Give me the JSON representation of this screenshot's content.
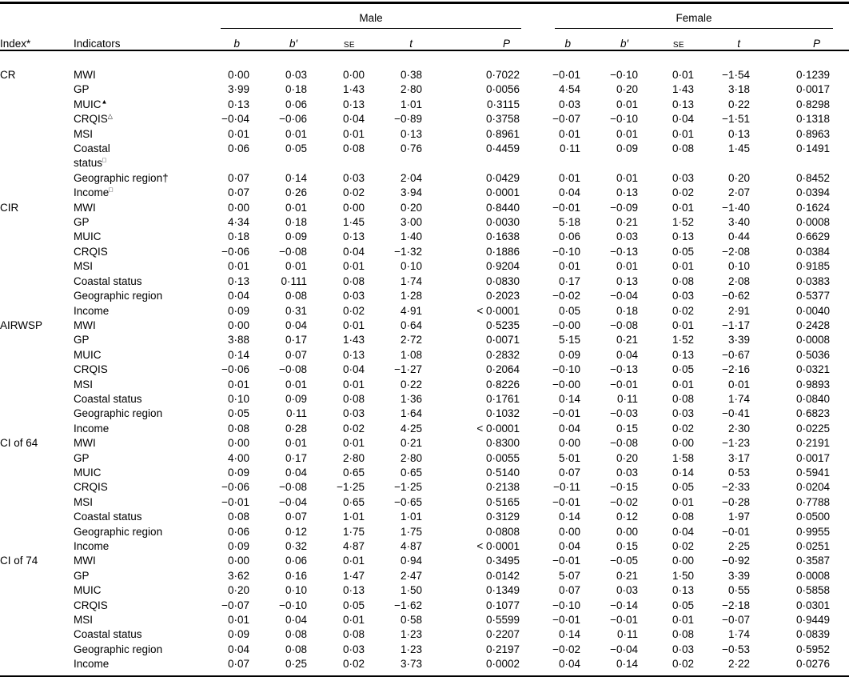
{
  "table": {
    "headers": {
      "index": "Index*",
      "indicators": "Indicators",
      "male": "Male",
      "female": "Female",
      "stats": [
        "b",
        "b′",
        "SE",
        "t",
        "P"
      ]
    },
    "groups": [
      {
        "index": "CR",
        "rows": [
          {
            "indicator": "MWI",
            "sup": "",
            "m": [
              "0·00",
              "0·03",
              "0·00",
              "0·38",
              "0·7022"
            ],
            "f": [
              "−0·01",
              "−0·10",
              "0·01",
              "−1·54",
              "0·1239"
            ]
          },
          {
            "indicator": "GP",
            "sup": "",
            "m": [
              "3·99",
              "0·18",
              "1·43",
              "2·80",
              "0·0056"
            ],
            "f": [
              "4·54",
              "0·20",
              "1·43",
              "3·18",
              "0·0017"
            ]
          },
          {
            "indicator": "MUIC",
            "sup": "▲",
            "m": [
              "0·13",
              "0·06",
              "0·13",
              "1·01",
              "0·3115"
            ],
            "f": [
              "0·03",
              "0·01",
              "0·13",
              "0·22",
              "0·8298"
            ]
          },
          {
            "indicator": "CRQIS",
            "sup": "△",
            "m": [
              "−0·04",
              "−0·06",
              "0·04",
              "−0·89",
              "0·3758"
            ],
            "f": [
              "−0·07",
              "−0·10",
              "0·04",
              "−1·51",
              "0·1318"
            ]
          },
          {
            "indicator": "MSI",
            "sup": "",
            "m": [
              "0·01",
              "0·01",
              "0·01",
              "0·13",
              "0·8961"
            ],
            "f": [
              "0·01",
              "0·01",
              "0·01",
              "0·13",
              "0·8963"
            ]
          },
          {
            "indicator": "Coastal\nstatus",
            "sup": "□",
            "m": [
              "0·06",
              "0·05",
              "0·08",
              "0·76",
              "0·4459"
            ],
            "f": [
              "0·11",
              "0·09",
              "0·08",
              "1·45",
              "0·1491"
            ]
          },
          {
            "indicator": "Geographic region†",
            "sup": "",
            "m": [
              "0·07",
              "0·14",
              "0·03",
              "2·04",
              "0·0429"
            ],
            "f": [
              "0·01",
              "0·01",
              "0·03",
              "0·20",
              "0·8452"
            ]
          },
          {
            "indicator": "Income",
            "sup": "□",
            "m": [
              "0·07",
              "0·26",
              "0·02",
              "3·94",
              "0·0001"
            ],
            "f": [
              "0·04",
              "0·13",
              "0·02",
              "2·07",
              "0·0394"
            ]
          }
        ]
      },
      {
        "index": "CIR",
        "rows": [
          {
            "indicator": "MWI",
            "sup": "",
            "m": [
              "0·00",
              "0·01",
              "0·00",
              "0·20",
              "0·8440"
            ],
            "f": [
              "−0·01",
              "−0·09",
              "0·01",
              "−1·40",
              "0·1624"
            ]
          },
          {
            "indicator": "GP",
            "sup": "",
            "m": [
              "4·34",
              "0·18",
              "1·45",
              "3·00",
              "0·0030"
            ],
            "f": [
              "5·18",
              "0·21",
              "1·52",
              "3·40",
              "0·0008"
            ]
          },
          {
            "indicator": "MUIC",
            "sup": "",
            "m": [
              "0·18",
              "0·09",
              "0·13",
              "1·40",
              "0·1638"
            ],
            "f": [
              "0·06",
              "0·03",
              "0·13",
              "0·44",
              "0·6629"
            ]
          },
          {
            "indicator": "CRQIS",
            "sup": "",
            "m": [
              "−0·06",
              "−0·08",
              "0·04",
              "−1·32",
              "0·1886"
            ],
            "f": [
              "−0·10",
              "−0·13",
              "0·05",
              "−2·08",
              "0·0384"
            ]
          },
          {
            "indicator": "MSI",
            "sup": "",
            "m": [
              "0·01",
              "0·01",
              "0·01",
              "0·10",
              "0·9204"
            ],
            "f": [
              "0·01",
              "0·01",
              "0·01",
              "0·10",
              "0·9185"
            ]
          },
          {
            "indicator": "Coastal status",
            "sup": "",
            "m": [
              "0·13",
              "0·111",
              "0·08",
              "1·74",
              "0·0830"
            ],
            "f": [
              "0·17",
              "0·13",
              "0·08",
              "2·08",
              "0·0383"
            ]
          },
          {
            "indicator": "Geographic region",
            "sup": "",
            "m": [
              "0·04",
              "0·08",
              "0·03",
              "1·28",
              "0·2023"
            ],
            "f": [
              "−0·02",
              "−0·04",
              "0·03",
              "−0·62",
              "0·5377"
            ]
          },
          {
            "indicator": "Income",
            "sup": "",
            "m": [
              "0·09",
              "0·31",
              "0·02",
              "4·91",
              "< 0·0001"
            ],
            "f": [
              "0·05",
              "0·18",
              "0·02",
              "2·91",
              "0·0040"
            ]
          }
        ]
      },
      {
        "index": "AIRWSP",
        "rows": [
          {
            "indicator": "MWI",
            "sup": "",
            "m": [
              "0·00",
              "0·04",
              "0·01",
              "0·64",
              "0·5235"
            ],
            "f": [
              "−0·00",
              "−0·08",
              "0·01",
              "−1·17",
              "0·2428"
            ]
          },
          {
            "indicator": "GP",
            "sup": "",
            "m": [
              "3·88",
              "0·17",
              "1·43",
              "2·72",
              "0·0071"
            ],
            "f": [
              "5·15",
              "0·21",
              "1·52",
              "3·39",
              "0·0008"
            ]
          },
          {
            "indicator": "MUIC",
            "sup": "",
            "m": [
              "0·14",
              "0·07",
              "0·13",
              "1·08",
              "0·2832"
            ],
            "f": [
              "0·09",
              "0·04",
              "0·13",
              "−0·67",
              "0·5036"
            ]
          },
          {
            "indicator": "CRQIS",
            "sup": "",
            "m": [
              "−0·06",
              "−0·08",
              "0·04",
              "−1·27",
              "0·2064"
            ],
            "f": [
              "−0·10",
              "−0·13",
              "0·05",
              "−2·16",
              "0·0321"
            ]
          },
          {
            "indicator": "MSI",
            "sup": "",
            "m": [
              "0·01",
              "0·01",
              "0·01",
              "0·22",
              "0·8226"
            ],
            "f": [
              "−0·00",
              "−0·01",
              "0·01",
              "0·01",
              "0·9893"
            ]
          },
          {
            "indicator": "Coastal status",
            "sup": "",
            "m": [
              "0·10",
              "0·09",
              "0·08",
              "1·36",
              "0·1761"
            ],
            "f": [
              "0·14",
              "0·11",
              "0·08",
              "1·74",
              "0·0840"
            ]
          },
          {
            "indicator": "Geographic region",
            "sup": "",
            "m": [
              "0·05",
              "0·11",
              "0·03",
              "1·64",
              "0·1032"
            ],
            "f": [
              "−0·01",
              "−0·03",
              "0·03",
              "−0·41",
              "0·6823"
            ]
          },
          {
            "indicator": "Income",
            "sup": "",
            "m": [
              "0·08",
              "0·28",
              "0·02",
              "4·25",
              "< 0·0001"
            ],
            "f": [
              "0·04",
              "0·15",
              "0·02",
              "2·30",
              "0·0225"
            ]
          }
        ]
      },
      {
        "index": "CI of 64",
        "rows": [
          {
            "indicator": "MWI",
            "sup": "",
            "m": [
              "0·00",
              "0·01",
              "0·01",
              "0·21",
              "0·8300"
            ],
            "f": [
              "0·00",
              "−0·08",
              "0·00",
              "−1·23",
              "0·2191"
            ]
          },
          {
            "indicator": "GP",
            "sup": "",
            "m": [
              "4·00",
              "0·17",
              "2·80",
              "2·80",
              "0·0055"
            ],
            "f": [
              "5·01",
              "0·20",
              "1·58",
              "3·17",
              "0·0017"
            ]
          },
          {
            "indicator": "MUIC",
            "sup": "",
            "m": [
              "0·09",
              "0·04",
              "0·65",
              "0·65",
              "0·5140"
            ],
            "f": [
              "0·07",
              "0·03",
              "0·14",
              "0·53",
              "0·5941"
            ]
          },
          {
            "indicator": "CRQIS",
            "sup": "",
            "m": [
              "−0·06",
              "−0·08",
              "−1·25",
              "−1·25",
              "0·2138"
            ],
            "f": [
              "−0·11",
              "−0·15",
              "0·05",
              "−2·33",
              "0·0204"
            ]
          },
          {
            "indicator": "MSI",
            "sup": "",
            "m": [
              "−0·01",
              "−0·04",
              "0·65",
              "−0·65",
              "0·5165"
            ],
            "f": [
              "−0·01",
              "−0·02",
              "0·01",
              "−0·28",
              "0·7788"
            ]
          },
          {
            "indicator": "Coastal status",
            "sup": "",
            "m": [
              "0·08",
              "0·07",
              "1·01",
              "1·01",
              "0·3129"
            ],
            "f": [
              "0·14",
              "0·12",
              "0·08",
              "1·97",
              "0·0500"
            ]
          },
          {
            "indicator": "Geographic region",
            "sup": "",
            "m": [
              "0·06",
              "0·12",
              "1·75",
              "1·75",
              "0·0808"
            ],
            "f": [
              "0·00",
              "0·00",
              "0·04",
              "−0·01",
              "0·9955"
            ]
          },
          {
            "indicator": "Income",
            "sup": "",
            "m": [
              "0·09",
              "0·32",
              "4·87",
              "4·87",
              "< 0·0001"
            ],
            "f": [
              "0·04",
              "0·15",
              "0·02",
              "2·25",
              "0·0251"
            ]
          }
        ]
      },
      {
        "index": "CI of 74",
        "rows": [
          {
            "indicator": "MWI",
            "sup": "",
            "m": [
              "0·00",
              "0·06",
              "0·01",
              "0·94",
              "0·3495"
            ],
            "f": [
              "−0·01",
              "−0·05",
              "0·00",
              "−0·92",
              "0·3587"
            ]
          },
          {
            "indicator": "GP",
            "sup": "",
            "m": [
              "3·62",
              "0·16",
              "1·47",
              "2·47",
              "0·0142"
            ],
            "f": [
              "5·07",
              "0·21",
              "1·50",
              "3·39",
              "0·0008"
            ]
          },
          {
            "indicator": "MUIC",
            "sup": "",
            "m": [
              "0·20",
              "0·10",
              "0·13",
              "1·50",
              "0·1349"
            ],
            "f": [
              "0·07",
              "0·03",
              "0·13",
              "0·55",
              "0·5858"
            ]
          },
          {
            "indicator": "CRQIS",
            "sup": "",
            "m": [
              "−0·07",
              "−0·10",
              "0·05",
              "−1·62",
              "0·1077"
            ],
            "f": [
              "−0·10",
              "−0·14",
              "0·05",
              "−2·18",
              "0·0301"
            ]
          },
          {
            "indicator": "MSI",
            "sup": "",
            "m": [
              "0·01",
              "0·04",
              "0·01",
              "0·58",
              "0·5599"
            ],
            "f": [
              "−0·01",
              "−0·01",
              "0·01",
              "−0·07",
              "0·9449"
            ]
          },
          {
            "indicator": "Coastal status",
            "sup": "",
            "m": [
              "0·09",
              "0·08",
              "0·08",
              "1·23",
              "0·2207"
            ],
            "f": [
              "0·14",
              "0·11",
              "0·08",
              "1·74",
              "0·0839"
            ]
          },
          {
            "indicator": "Geographic region",
            "sup": "",
            "m": [
              "0·04",
              "0·08",
              "0·03",
              "1·23",
              "0·2197"
            ],
            "f": [
              "−0·02",
              "−0·04",
              "0·03",
              "−0·53",
              "0·5952"
            ]
          },
          {
            "indicator": "Income",
            "sup": "",
            "m": [
              "0·07",
              "0·25",
              "0·02",
              "3·73",
              "0·0002"
            ],
            "f": [
              "0·04",
              "0·14",
              "0·02",
              "2·22",
              "0·0276"
            ]
          }
        ]
      }
    ]
  }
}
